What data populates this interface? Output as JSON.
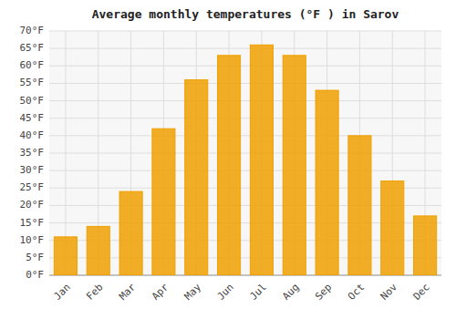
{
  "chart_data": {
    "type": "bar",
    "title": "Average monthly temperatures (°F ) in Sarov",
    "categories": [
      "Jan",
      "Feb",
      "Mar",
      "Apr",
      "May",
      "Jun",
      "Jul",
      "Aug",
      "Sep",
      "Oct",
      "Nov",
      "Dec"
    ],
    "values": [
      11,
      14,
      24,
      42,
      56,
      63,
      66,
      63,
      53,
      40,
      27,
      17
    ],
    "color": "#F0A000",
    "ylim": [
      0,
      70
    ],
    "yticks": [
      {
        "value": 0,
        "label": "0°F"
      },
      {
        "value": 5,
        "label": "5°F"
      },
      {
        "value": 10,
        "label": "10°F"
      },
      {
        "value": 15,
        "label": "15°F"
      },
      {
        "value": 20,
        "label": "20°F"
      },
      {
        "value": 25,
        "label": "25°F"
      },
      {
        "value": 30,
        "label": "30°F"
      },
      {
        "value": 35,
        "label": "35°F"
      },
      {
        "value": 40,
        "label": "40°F"
      },
      {
        "value": 45,
        "label": "45°F"
      },
      {
        "value": 50,
        "label": "50°F"
      },
      {
        "value": 55,
        "label": "55°F"
      },
      {
        "value": 60,
        "label": "60°F"
      },
      {
        "value": 65,
        "label": "65°F"
      },
      {
        "value": 70,
        "label": "70°F"
      }
    ],
    "grid": true
  }
}
